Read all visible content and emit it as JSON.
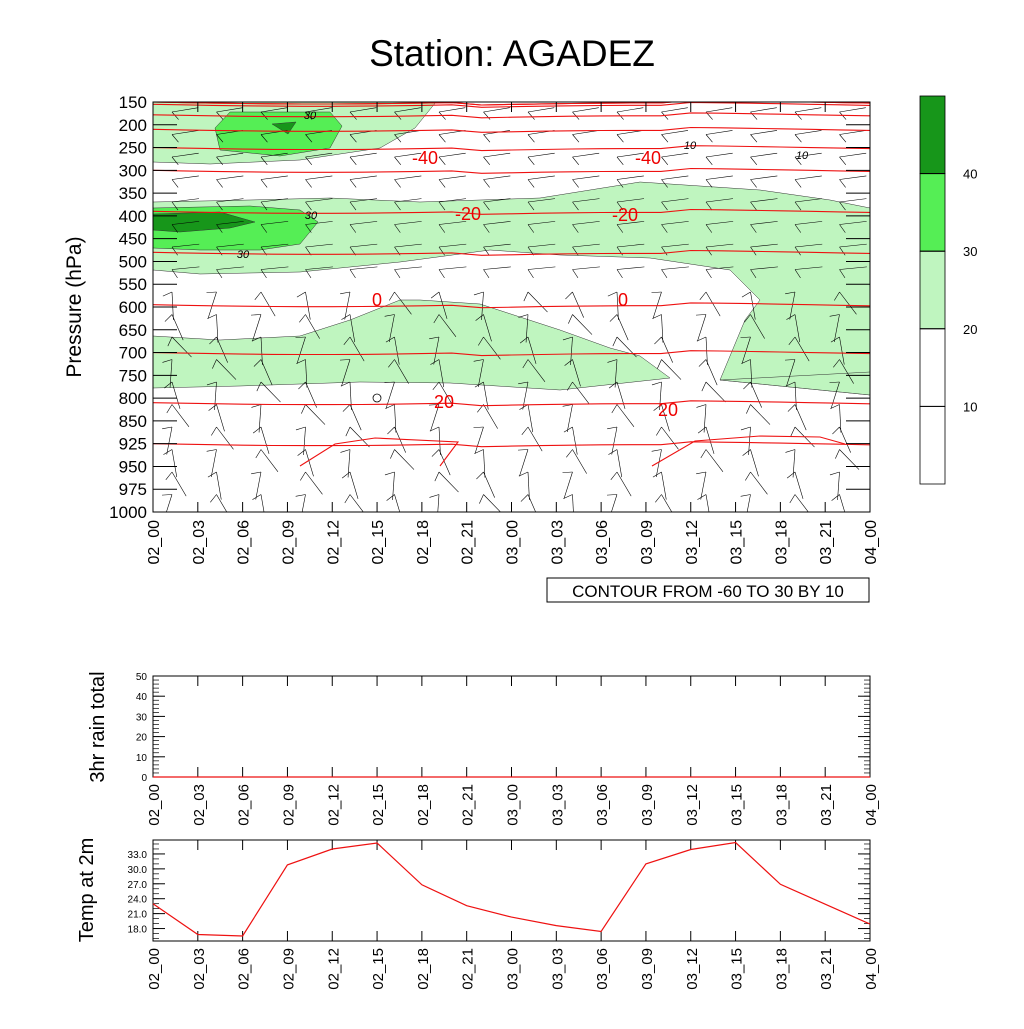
{
  "title": "Station: AGADEZ",
  "time_labels": [
    "02_00",
    "02_03",
    "02_06",
    "02_09",
    "02_12",
    "02_15",
    "02_18",
    "02_21",
    "03_00",
    "03_03",
    "03_06",
    "03_09",
    "03_12",
    "03_15",
    "03_18",
    "03_21",
    "04_00"
  ],
  "contour_info": "CONTOUR FROM -60 TO 30 BY 10",
  "colorbar": {
    "levels": [
      "10",
      "20",
      "30",
      "40"
    ],
    "colors": [
      "#ffffff",
      "#ffffff",
      "#bff5bf",
      "#55ee55",
      "#17961a"
    ]
  },
  "colors": {
    "temp_contour": "#ee1111",
    "temp_line": "#ee1111",
    "barb": "#000000"
  },
  "chart_data": [
    {
      "type": "contour",
      "name": "cross-section",
      "title": "Station: AGADEZ",
      "ylabel": "Pressure (hPa)",
      "yticks": [
        "150",
        "200",
        "250",
        "300",
        "350",
        "400",
        "450",
        "500",
        "550",
        "600",
        "650",
        "700",
        "750",
        "800",
        "850",
        "925",
        "950",
        "975",
        "1000"
      ],
      "x_range": [
        0,
        48
      ],
      "temperature_contours": [
        {
          "label": "-40",
          "pressure_hPa": 262
        },
        {
          "label": "-20",
          "pressure_hPa": 390
        },
        {
          "label": "0",
          "pressure_hPa": 595
        },
        {
          "label": "20",
          "pressure_hPa": 810
        }
      ],
      "contour_labels": [
        "-40",
        "-40",
        "-20",
        "-20",
        "0",
        "0",
        "20",
        "20",
        "30",
        "30",
        "30",
        "10",
        "10"
      ],
      "humidity_shading_levels": [
        "10",
        "20",
        "30",
        "40"
      ]
    },
    {
      "type": "line",
      "name": "rain",
      "ylabel": "3hr rain total",
      "ylim": [
        0,
        50
      ],
      "yticks": [
        "0",
        "10",
        "20",
        "30",
        "40",
        "50"
      ],
      "values": [
        0,
        0,
        0,
        0,
        0,
        0,
        0,
        0,
        0,
        0,
        0,
        0,
        0,
        0,
        0,
        0,
        0
      ]
    },
    {
      "type": "line",
      "name": "temperature",
      "ylabel": "Temp at 2m",
      "ylim": [
        15.5,
        35.8
      ],
      "yticks": [
        "18.0",
        "21.0",
        "24.0",
        "27.0",
        "30.0",
        "33.0"
      ],
      "values": [
        23.0,
        16.8,
        16.5,
        30.8,
        34.0,
        35.2,
        26.8,
        22.6,
        20.3,
        18.6,
        17.4,
        31.0,
        33.9,
        35.3,
        26.9,
        22.9,
        18.9
      ]
    }
  ]
}
